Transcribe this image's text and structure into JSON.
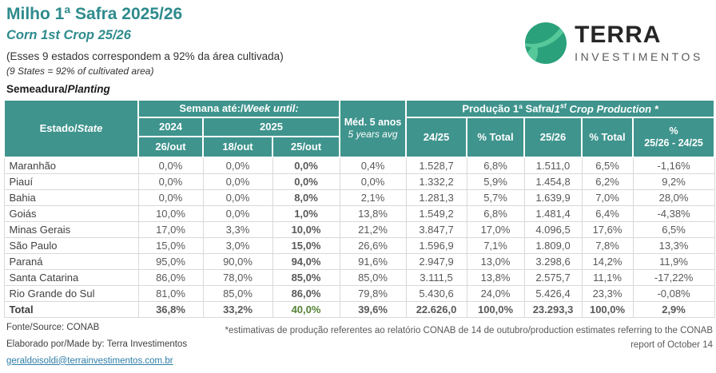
{
  "page": {
    "title": "Milho 1ª Safra 2025/26",
    "subtitle": "Corn 1st Crop 25/26",
    "note_pt": "(Esses 9 estados correspondem a 92% da área cultivada)",
    "note_en": "(9 States = 92% of cultivated area)",
    "section_label_pt": "Semeadura/",
    "section_label_en": "Planting"
  },
  "logo": {
    "brand": "TERRA",
    "brand_sub": "INVESTIMENTOS"
  },
  "colors": {
    "header_teal": "#3F948D",
    "title_teal": "#2E8B8D",
    "negative_red": "#FF0000",
    "positive_green": "#548235",
    "dark_text": "#262626",
    "value_gray": "#595959",
    "border_gray": "#D9D9D9",
    "link_blue": "#2E7DA6",
    "logo_green": "#2BA17B",
    "logo_light_green": "#56C89A"
  },
  "table": {
    "headers": {
      "estado_pt": "Estado/",
      "estado_en": "State",
      "week_pt": "Semana até:/",
      "week_en": "Week until:",
      "y2024": "2024",
      "y2025": "2025",
      "d2024": "26/out",
      "d18": "18/out",
      "d25": "25/out",
      "med_pt": "Méd. 5 anos",
      "med_en": "5 years avg",
      "prod_pt": "Produção 1ª Safra/",
      "prod_en_num": "1",
      "prod_en_sup": "st",
      "prod_en_rest": " Crop Production *",
      "c2425": "24/25",
      "ctot1": "% Total",
      "c2526": "25/26",
      "ctot2": "% Total",
      "cdiff_line1": "%",
      "cdiff_line2": "25/26 - 24/25"
    },
    "rows": [
      {
        "state": "Maranhão",
        "cells": [
          {
            "v": "0,0%"
          },
          {
            "v": "0,0%"
          },
          {
            "v": "0,0%",
            "c": "red"
          },
          {
            "v": "0,4%"
          },
          {
            "v": "1.528,7"
          },
          {
            "v": "6,8%"
          },
          {
            "v": "1.511,0"
          },
          {
            "v": "6,5%"
          },
          {
            "v": "-1,16%",
            "c": "red-plain"
          }
        ]
      },
      {
        "state": "Piauí",
        "cells": [
          {
            "v": "0,0%"
          },
          {
            "v": "0,0%"
          },
          {
            "v": "0,0%",
            "c": "black"
          },
          {
            "v": "0,0%"
          },
          {
            "v": "1.332,2"
          },
          {
            "v": "5,9%"
          },
          {
            "v": "1.454,8"
          },
          {
            "v": "6,2%"
          },
          {
            "v": "9,2%"
          }
        ]
      },
      {
        "state": "Bahia",
        "cells": [
          {
            "v": "0,0%"
          },
          {
            "v": "0,0%"
          },
          {
            "v": "8,0%",
            "c": "green"
          },
          {
            "v": "2,1%"
          },
          {
            "v": "1.281,3"
          },
          {
            "v": "5,7%"
          },
          {
            "v": "1.639,9"
          },
          {
            "v": "7,0%"
          },
          {
            "v": "28,0%"
          }
        ]
      },
      {
        "state": "Goiás",
        "cells": [
          {
            "v": "10,0%"
          },
          {
            "v": "0,0%"
          },
          {
            "v": "1,0%",
            "c": "red"
          },
          {
            "v": "13,8%"
          },
          {
            "v": "1.549,2"
          },
          {
            "v": "6,8%"
          },
          {
            "v": "1.481,4"
          },
          {
            "v": "6,4%"
          },
          {
            "v": "-4,38%",
            "c": "red-plain"
          }
        ]
      },
      {
        "state": "Minas Gerais",
        "cells": [
          {
            "v": "17,0%"
          },
          {
            "v": "3,3%"
          },
          {
            "v": "10,0%",
            "c": "red"
          },
          {
            "v": "21,2%"
          },
          {
            "v": "3.847,7"
          },
          {
            "v": "17,0%"
          },
          {
            "v": "4.096,5"
          },
          {
            "v": "17,6%"
          },
          {
            "v": "6,5%"
          }
        ]
      },
      {
        "state": "São Paulo",
        "cells": [
          {
            "v": "15,0%"
          },
          {
            "v": "3,0%"
          },
          {
            "v": "15,0%",
            "c": "red"
          },
          {
            "v": "26,6%"
          },
          {
            "v": "1.596,9"
          },
          {
            "v": "7,1%"
          },
          {
            "v": "1.809,0"
          },
          {
            "v": "7,8%"
          },
          {
            "v": "13,3%"
          }
        ]
      },
      {
        "state": "Paraná",
        "cells": [
          {
            "v": "95,0%"
          },
          {
            "v": "90,0%"
          },
          {
            "v": "94,0%",
            "c": "green"
          },
          {
            "v": "91,6%"
          },
          {
            "v": "2.947,9"
          },
          {
            "v": "13,0%"
          },
          {
            "v": "3.298,6"
          },
          {
            "v": "14,2%"
          },
          {
            "v": "11,9%"
          }
        ]
      },
      {
        "state": "Santa Catarina",
        "cells": [
          {
            "v": "86,0%"
          },
          {
            "v": "78,0%"
          },
          {
            "v": "85,0%",
            "c": "red"
          },
          {
            "v": "85,0%"
          },
          {
            "v": "3.111,5"
          },
          {
            "v": "13,8%"
          },
          {
            "v": "2.575,7"
          },
          {
            "v": "11,1%"
          },
          {
            "v": "-17,22%",
            "c": "red-plain"
          }
        ]
      },
      {
        "state": "Rio Grande do Sul",
        "cells": [
          {
            "v": "81,0%"
          },
          {
            "v": "85,0%"
          },
          {
            "v": "86,0%",
            "c": "green"
          },
          {
            "v": "79,8%"
          },
          {
            "v": "5.430,6"
          },
          {
            "v": "24,0%"
          },
          {
            "v": "5.426,4"
          },
          {
            "v": "23,3%"
          },
          {
            "v": "-0,08%",
            "c": "red-plain"
          }
        ]
      }
    ],
    "total": {
      "state": "Total",
      "cells": [
        {
          "v": "36,8%"
        },
        {
          "v": "33,2%"
        },
        {
          "v": "40,0%",
          "c": "green"
        },
        {
          "v": "39,6%"
        },
        {
          "v": "22.626,0"
        },
        {
          "v": "100,0%"
        },
        {
          "v": "23.293,3"
        },
        {
          "v": "100,0%"
        },
        {
          "v": "2,9%"
        }
      ]
    }
  },
  "footer": {
    "source": "Fonte/Source: CONAB",
    "made_by": "Elaborado por/Made by: Terra Investimentos",
    "email": "geraldoisoldi@terrainvestimentos.com.br",
    "footnote": "*estimativas de produção referentes ao relatório CONAB de 14 de outubro/production estimates referring to the CONAB report of October 14"
  }
}
